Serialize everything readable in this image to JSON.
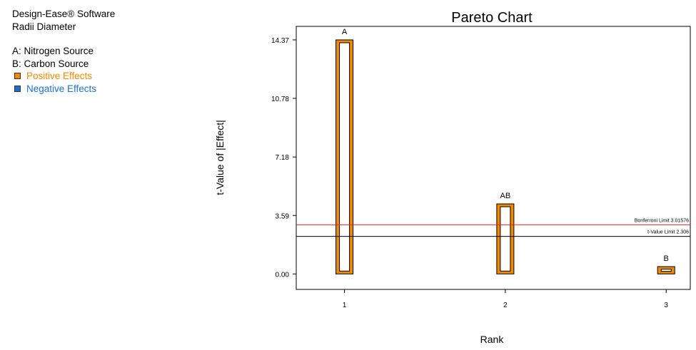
{
  "sidebar": {
    "software": "Design-Ease® Software",
    "response": "Radii Diameter",
    "factors": [
      {
        "label": "A: Nitrogen Source"
      },
      {
        "label": "B: Carbon Source"
      }
    ],
    "legend": [
      {
        "label": "Positive Effects",
        "color": "#f08a00"
      },
      {
        "label": "Negative Effects",
        "color": "#1e6fd0"
      }
    ]
  },
  "chart_data": {
    "type": "bar",
    "title": "Pareto Chart",
    "xlabel": "Rank",
    "ylabel": "t-Value of |Effect|",
    "categories": [
      "1",
      "2",
      "3"
    ],
    "bar_labels": [
      "A",
      "AB",
      "B"
    ],
    "values": [
      14.37,
      4.3,
      0.45
    ],
    "effect_sign": [
      "positive",
      "positive",
      "positive"
    ],
    "yticks": [
      "0.00",
      "3.59",
      "7.18",
      "10.78",
      "14.37"
    ],
    "ylim": [
      -0.95,
      15.2
    ],
    "xlim": [
      0.7,
      3.15
    ],
    "bar_color": "#f08a00",
    "reference_lines": [
      {
        "label": "Bonferroni Limit 3.01576",
        "value": 3.01576,
        "color": "#e8261e"
      },
      {
        "label": "t-Value Limit 2.306",
        "value": 2.306,
        "color": "#000000"
      }
    ]
  }
}
